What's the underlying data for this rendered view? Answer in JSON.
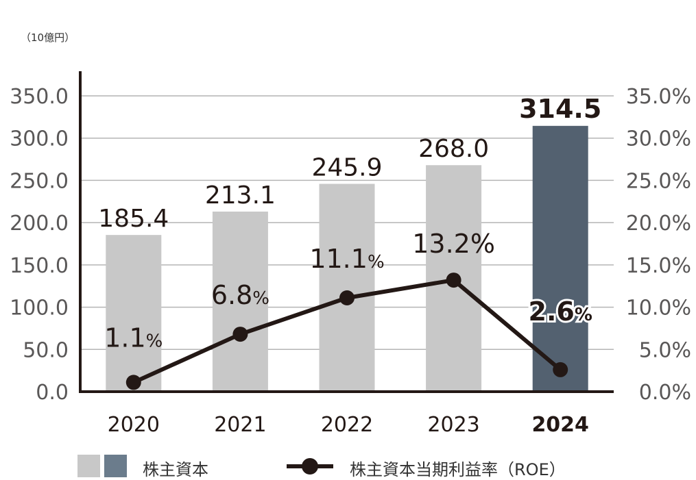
{
  "unit_label": "（10億円）",
  "colors": {
    "bar_past": "#c8c8c8",
    "bar_latest": "#536170",
    "line": "#231815",
    "axis": "#231815",
    "grid": "#b4b4b4",
    "tick_text": "#595757",
    "label_text": "#231815",
    "legend_swatch_2": "#6b7c8c"
  },
  "chart_data": {
    "type": "bar",
    "categories": [
      "2020",
      "2021",
      "2022",
      "2023",
      "2024"
    ],
    "highlight_category": "2024",
    "series": [
      {
        "name": "株主資本",
        "type": "bar",
        "axis": "left",
        "values": [
          185.4,
          213.1,
          245.9,
          268.0,
          314.5
        ],
        "labels": [
          "185.4",
          "213.1",
          "245.9",
          "268.0",
          "314.5"
        ]
      },
      {
        "name": "株主資本当期利益率（ROE）",
        "type": "line",
        "axis": "right",
        "values": [
          1.1,
          6.8,
          11.1,
          13.2,
          2.6
        ],
        "labels": [
          "1.1",
          "6.8",
          "11.1",
          "13.2",
          "2.6"
        ],
        "label_suffixes": [
          "%",
          "%",
          "%",
          "%",
          "%"
        ]
      }
    ],
    "left_axis": {
      "ylim": [
        0,
        350
      ],
      "ticks": [
        "0.0",
        "50.0",
        "100.0",
        "150.0",
        "200.0",
        "250.0",
        "300.0",
        "350.0"
      ]
    },
    "right_axis": {
      "ylim": [
        0,
        35
      ],
      "ticks": [
        "0.0%",
        "5.0%",
        "10.0%",
        "15.0%",
        "20.0%",
        "25.0%",
        "30.0%",
        "35.0%"
      ]
    },
    "grid": true,
    "legend_position": "bottom"
  },
  "legend": {
    "bar_label": "株主資本",
    "line_label": "株主資本当期利益率（ROE）"
  }
}
